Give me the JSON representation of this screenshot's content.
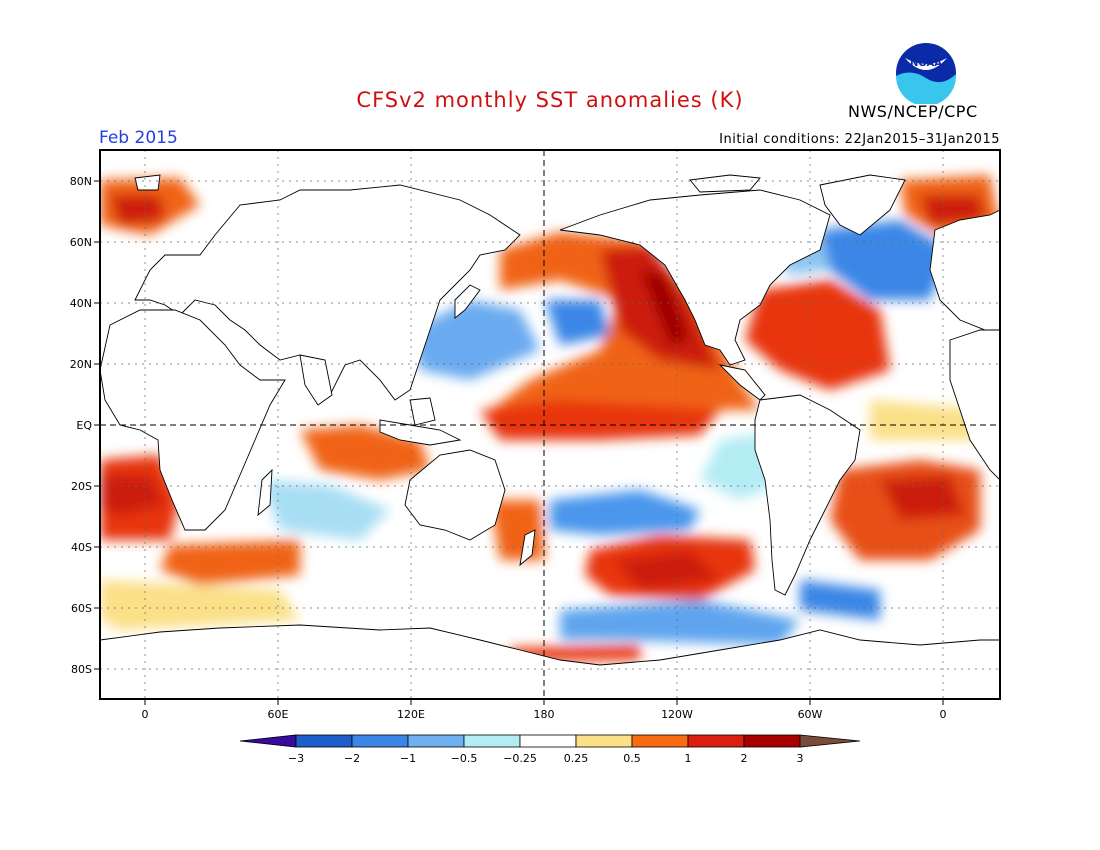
{
  "header": {
    "title": "CFSv2 monthly SST anomalies (K)",
    "month": "Feb 2015",
    "initial_conditions": "Initial conditions: 22Jan2015–31Jan2015",
    "agency": "NWS/NCEP/CPC",
    "logo_text": "NOAA"
  },
  "map": {
    "lat_labels": [
      "80N",
      "60N",
      "40N",
      "20N",
      "EQ",
      "20S",
      "40S",
      "60S",
      "80S"
    ],
    "lon_labels": [
      "0",
      "60E",
      "120E",
      "180",
      "120W",
      "60W",
      "0"
    ]
  },
  "colorbar": {
    "tick_labels": [
      "−3",
      "−2",
      "−1",
      "−0.5",
      "−0.25",
      "0.25",
      "0.5",
      "1",
      "2",
      "3"
    ],
    "colors": [
      "#3a0aa0",
      "#1c5ecc",
      "#3a86e6",
      "#6eb0f0",
      "#b4ecf4",
      "#ffffff",
      "#fbe088",
      "#fa6a10",
      "#dc1e0e",
      "#a80000",
      "#7a4a3a"
    ]
  },
  "colors": {
    "title": "#d01010",
    "month": "#2040e0",
    "land": "#ffffff",
    "coast": "#000000"
  }
}
